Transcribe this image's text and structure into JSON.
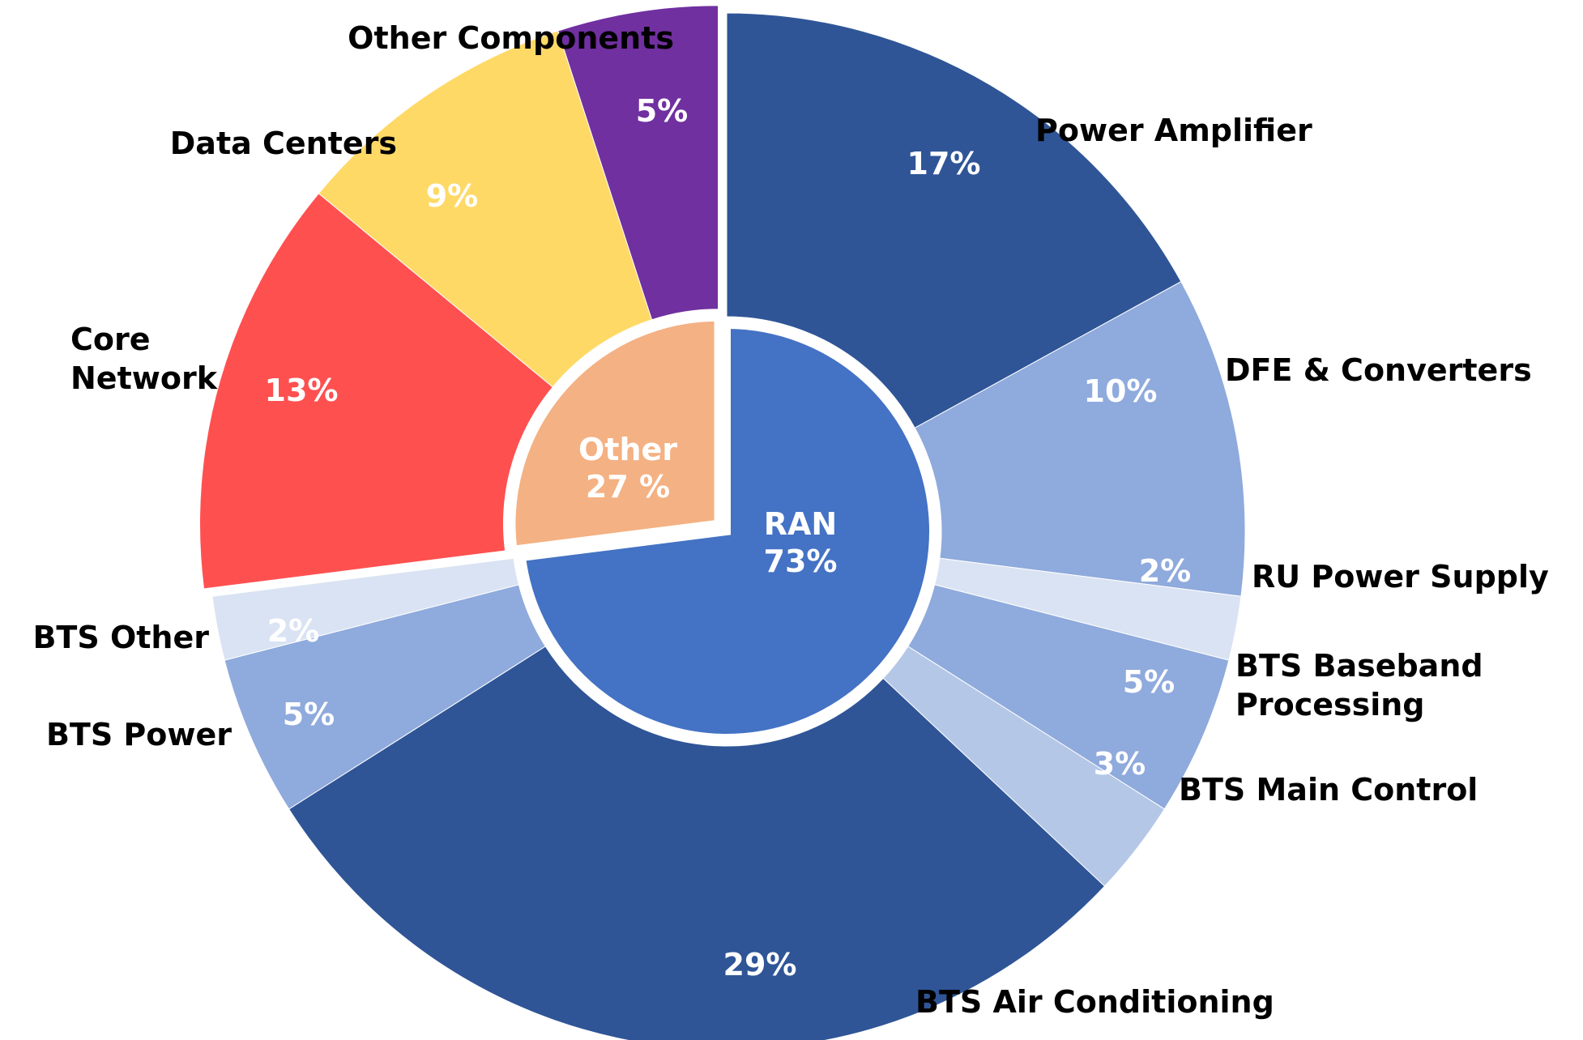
{
  "chart_data": {
    "type": "pie",
    "subtype": "nested-donut",
    "inner_ring": [
      {
        "name": "RAN",
        "value": 73,
        "label": "RAN",
        "value_label": "73%",
        "color": "#4472C4"
      },
      {
        "name": "Other",
        "value": 27,
        "label": "Other",
        "value_label": "27 %",
        "color": "#F4B183"
      }
    ],
    "outer_ring": [
      {
        "name": "Power Amplifier",
        "group": "RAN",
        "value": 17,
        "label": [
          "Power Amplifier"
        ],
        "value_label": "17%",
        "color": "#2F5597"
      },
      {
        "name": "DFE & Converters",
        "group": "RAN",
        "value": 10,
        "label": [
          "DFE & Converters"
        ],
        "value_label": "10%",
        "color": "#8FAADC"
      },
      {
        "name": "RU Power Supply",
        "group": "RAN",
        "value": 2,
        "label": [
          "RU Power Supply"
        ],
        "value_label": "2%",
        "color": "#DAE3F3"
      },
      {
        "name": "BTS Baseband Processing",
        "group": "RAN",
        "value": 5,
        "label": [
          "BTS Baseband",
          "Processing"
        ],
        "value_label": "5%",
        "color": "#8FAADC"
      },
      {
        "name": "BTS Main Control",
        "group": "RAN",
        "value": 3,
        "label": [
          "BTS Main Control"
        ],
        "value_label": "3%",
        "color": "#B4C7E7"
      },
      {
        "name": "BTS Air Conditioning",
        "group": "RAN",
        "value": 29,
        "label": [
          "BTS Air Conditioning"
        ],
        "value_label": "29%",
        "color": "#2F5597"
      },
      {
        "name": "BTS Power",
        "group": "RAN",
        "value": 5,
        "label": [
          "BTS Power"
        ],
        "value_label": "5%",
        "color": "#8FAADC"
      },
      {
        "name": "BTS Other",
        "group": "RAN",
        "value": 2,
        "label": [
          "BTS Other"
        ],
        "value_label": "2%",
        "color": "#DAE3F3"
      },
      {
        "name": "Core Network",
        "group": "Other",
        "value": 13,
        "label": [
          "Core",
          "Network"
        ],
        "value_label": "13%",
        "color": "#FF5050"
      },
      {
        "name": "Data Centers",
        "group": "Other",
        "value": 9,
        "label": [
          "Data Centers"
        ],
        "value_label": "9%",
        "color": "#FFD966"
      },
      {
        "name": "Other Components",
        "group": "Other",
        "value": 5,
        "label": [
          "Other Components"
        ],
        "value_label": "5%",
        "color": "#7030A0"
      }
    ],
    "start_angle_deg": 0,
    "direction": "clockwise",
    "legend": "none"
  }
}
